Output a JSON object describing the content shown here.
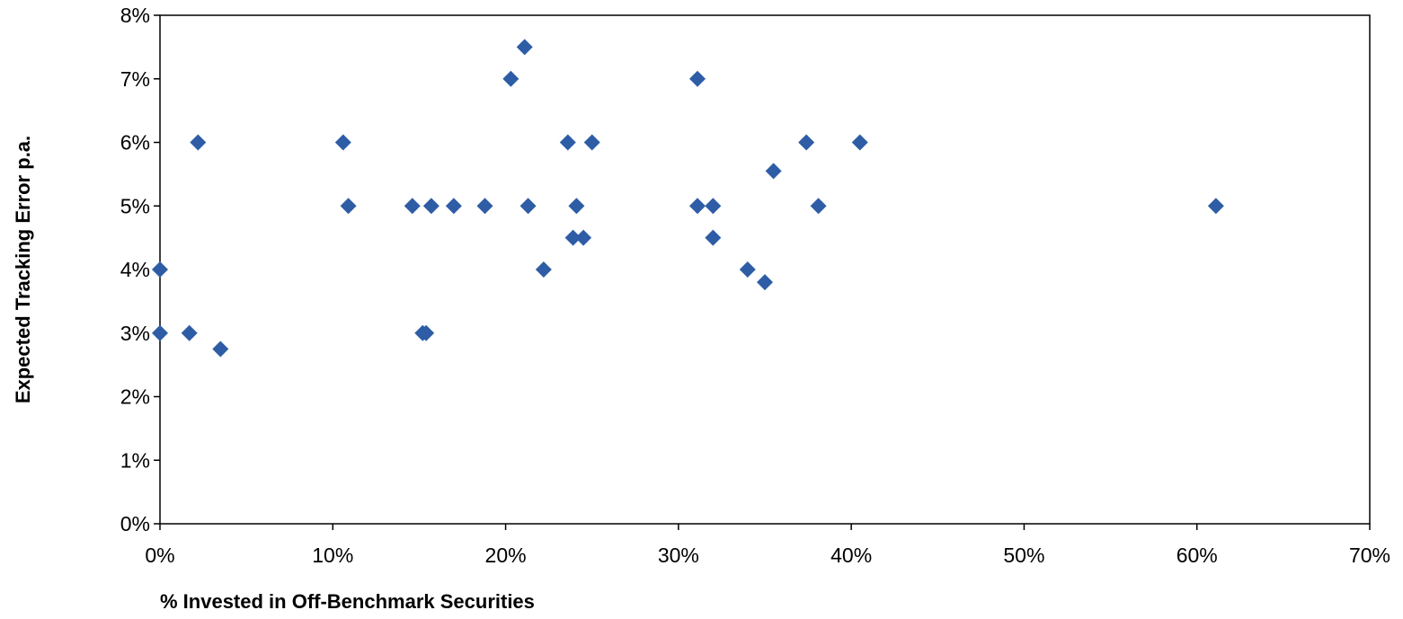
{
  "chart_data": {
    "type": "scatter",
    "title": "",
    "xlabel": "% Invested in Off-Benchmark Securities",
    "ylabel": "Expected Tracking Error p.a.",
    "xlim": [
      0,
      0.7
    ],
    "ylim": [
      0,
      0.08
    ],
    "x_ticks": [
      0,
      0.1,
      0.2,
      0.3,
      0.4,
      0.5,
      0.6,
      0.7
    ],
    "y_ticks": [
      0,
      0.01,
      0.02,
      0.03,
      0.04,
      0.05,
      0.06,
      0.07,
      0.08
    ],
    "x_tick_labels": [
      "0%",
      "10%",
      "20%",
      "30%",
      "40%",
      "50%",
      "60%",
      "70%"
    ],
    "y_tick_labels": [
      "0%",
      "1%",
      "2%",
      "3%",
      "4%",
      "5%",
      "6%",
      "7%",
      "8%"
    ],
    "grid": false,
    "legend": "none",
    "marker": "diamond",
    "marker_color": "#2E5DA6",
    "series": [
      {
        "points": [
          {
            "x": 0.0,
            "y": 0.04
          },
          {
            "x": 0.0,
            "y": 0.03
          },
          {
            "x": 0.017,
            "y": 0.03
          },
          {
            "x": 0.022,
            "y": 0.06
          },
          {
            "x": 0.035,
            "y": 0.0275
          },
          {
            "x": 0.106,
            "y": 0.06
          },
          {
            "x": 0.109,
            "y": 0.05
          },
          {
            "x": 0.146,
            "y": 0.05
          },
          {
            "x": 0.152,
            "y": 0.03
          },
          {
            "x": 0.154,
            "y": 0.03
          },
          {
            "x": 0.157,
            "y": 0.05
          },
          {
            "x": 0.17,
            "y": 0.05
          },
          {
            "x": 0.188,
            "y": 0.05
          },
          {
            "x": 0.203,
            "y": 0.07
          },
          {
            "x": 0.211,
            "y": 0.075
          },
          {
            "x": 0.213,
            "y": 0.05
          },
          {
            "x": 0.222,
            "y": 0.04
          },
          {
            "x": 0.236,
            "y": 0.06
          },
          {
            "x": 0.239,
            "y": 0.045
          },
          {
            "x": 0.241,
            "y": 0.05
          },
          {
            "x": 0.245,
            "y": 0.045
          },
          {
            "x": 0.25,
            "y": 0.06
          },
          {
            "x": 0.311,
            "y": 0.07
          },
          {
            "x": 0.311,
            "y": 0.05
          },
          {
            "x": 0.32,
            "y": 0.05
          },
          {
            "x": 0.32,
            "y": 0.045
          },
          {
            "x": 0.34,
            "y": 0.04
          },
          {
            "x": 0.35,
            "y": 0.038
          },
          {
            "x": 0.355,
            "y": 0.0555
          },
          {
            "x": 0.374,
            "y": 0.06
          },
          {
            "x": 0.381,
            "y": 0.05
          },
          {
            "x": 0.405,
            "y": 0.06
          },
          {
            "x": 0.611,
            "y": 0.05
          }
        ]
      }
    ]
  }
}
